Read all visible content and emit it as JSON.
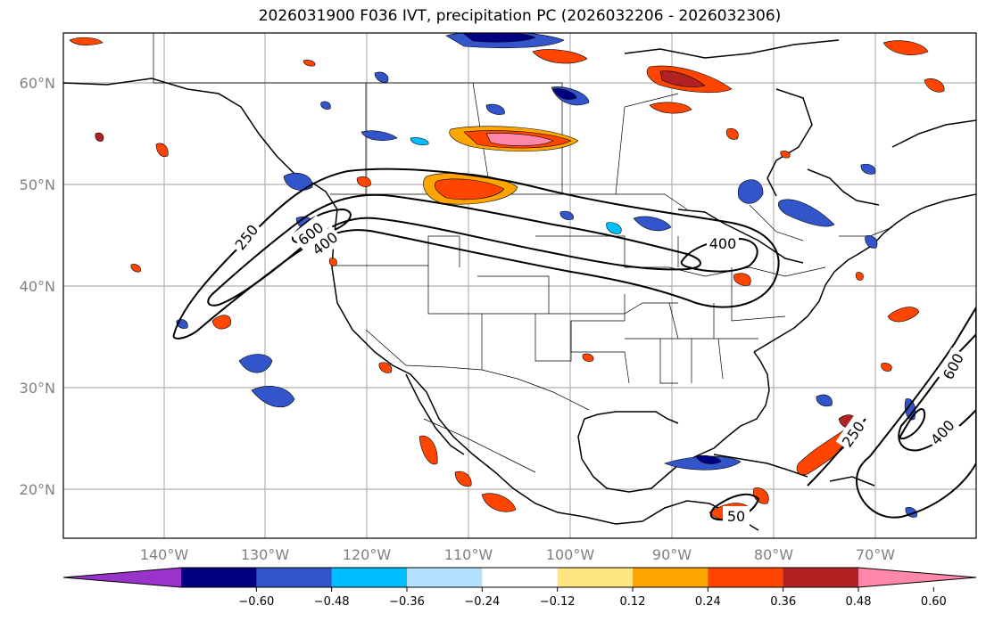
{
  "title": "2026031900 F036 IVT, precipitation PC (2026032206 - 2026032306)",
  "lat_labels": [
    "60°N",
    "50°N",
    "40°N",
    "30°N",
    "20°N"
  ],
  "lon_labels": [
    "140°W",
    "130°W",
    "120°W",
    "110°W",
    "100°W",
    "90°W",
    "80°W",
    "70°W"
  ],
  "contour_labels": [
    "250",
    "600",
    "400",
    "400",
    "600",
    "400",
    "250",
    "50"
  ],
  "colorbar": {
    "colors": [
      "#9933cc",
      "#000080",
      "#3355cc",
      "#00bfff",
      "#b3e0ff",
      "#ffffff",
      "#ffe680",
      "#ffa500",
      "#ff4500",
      "#b22222",
      "#ff88aa"
    ],
    "tick_labels": [
      "−0.60",
      "−0.48",
      "−0.36",
      "−0.24",
      "−0.12",
      "0.12",
      "0.24",
      "0.36",
      "0.48",
      "0.60"
    ]
  }
}
